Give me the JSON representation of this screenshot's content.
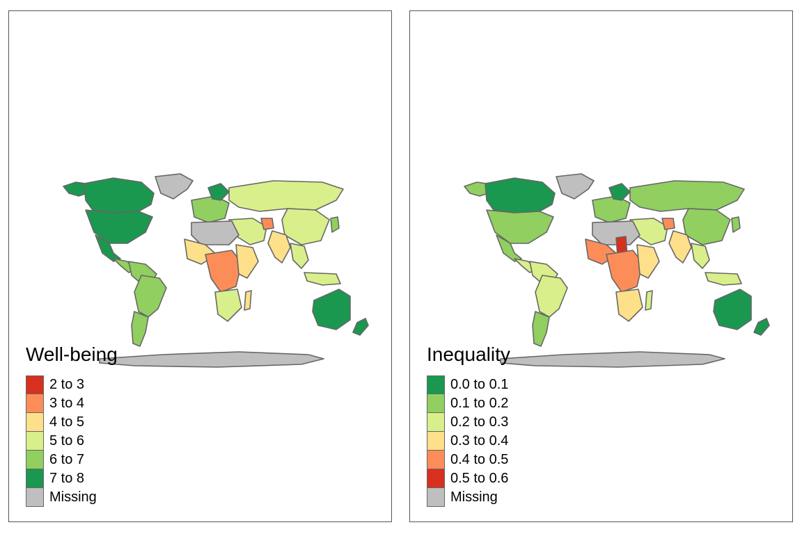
{
  "maps": [
    {
      "legend_title": "Well-being",
      "classes": [
        {
          "label": "2 to 3",
          "color": "#d7301f"
        },
        {
          "label": "3 to 4",
          "color": "#fc8d59"
        },
        {
          "label": "4 to 5",
          "color": "#fee08b"
        },
        {
          "label": "5 to 6",
          "color": "#d9ef8b"
        },
        {
          "label": "6 to 7",
          "color": "#91cf60"
        },
        {
          "label": "7 to 8",
          "color": "#1a9850"
        },
        {
          "label": "Missing",
          "color": "#bfbfbf"
        }
      ],
      "region_classes": {
        "canada": 5,
        "usa": 5,
        "alaska": 5,
        "greenland": 6,
        "mexico": 5,
        "central_america": 4,
        "south_america": 4,
        "brazil": 4,
        "argentina": 4,
        "europe_west": 4,
        "scandinavia": 5,
        "russia": 3,
        "china": 3,
        "india": 2,
        "middle_east": 3,
        "north_africa": 6,
        "west_africa": 2,
        "central_africa": 1,
        "east_africa": 2,
        "southern_africa": 3,
        "madagascar": 2,
        "australia": 5,
        "new_zealand": 5,
        "southeast_asia": 3,
        "japan": 4,
        "indonesia": 3,
        "antarctica": 6,
        "afghanistan": 1
      }
    },
    {
      "legend_title": "Inequality",
      "classes": [
        {
          "label": "0.0 to 0.1",
          "color": "#1a9850"
        },
        {
          "label": "0.1 to 0.2",
          "color": "#91cf60"
        },
        {
          "label": "0.2 to 0.3",
          "color": "#d9ef8b"
        },
        {
          "label": "0.3 to 0.4",
          "color": "#fee08b"
        },
        {
          "label": "0.4 to 0.5",
          "color": "#fc8d59"
        },
        {
          "label": "0.5 to 0.6",
          "color": "#d7301f"
        },
        {
          "label": "Missing",
          "color": "#bfbfbf"
        }
      ],
      "region_classes": {
        "canada": 0,
        "usa": 1,
        "alaska": 1,
        "greenland": 6,
        "mexico": 1,
        "central_america": 2,
        "south_america": 2,
        "brazil": 2,
        "argentina": 1,
        "europe_west": 1,
        "scandinavia": 0,
        "russia": 1,
        "china": 1,
        "india": 3,
        "middle_east": 2,
        "north_africa": 6,
        "west_africa": 4,
        "central_africa": 4,
        "east_africa": 3,
        "southern_africa": 3,
        "madagascar": 2,
        "australia": 0,
        "new_zealand": 0,
        "southeast_asia": 2,
        "japan": 1,
        "indonesia": 2,
        "antarctica": 6,
        "afghanistan": 4,
        "chad": 5
      }
    }
  ]
}
